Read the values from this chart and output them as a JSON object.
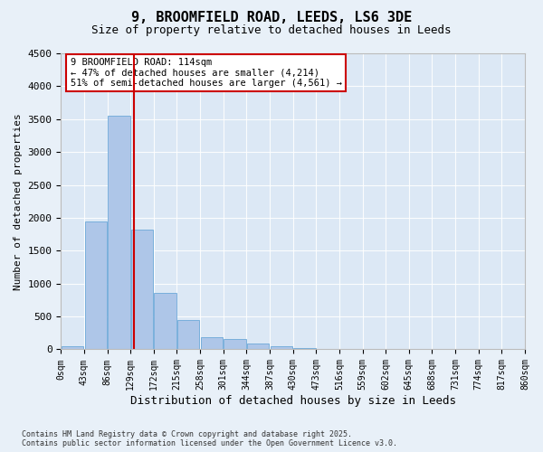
{
  "title_line1": "9, BROOMFIELD ROAD, LEEDS, LS6 3DE",
  "title_line2": "Size of property relative to detached houses in Leeds",
  "xlabel": "Distribution of detached houses by size in Leeds",
  "ylabel": "Number of detached properties",
  "annotation_title": "9 BROOMFIELD ROAD: 114sqm",
  "annotation_line2": "← 47% of detached houses are smaller (4,214)",
  "annotation_line3": "51% of semi-detached houses are larger (4,561) →",
  "footer_line1": "Contains HM Land Registry data © Crown copyright and database right 2025.",
  "footer_line2": "Contains public sector information licensed under the Open Government Licence v3.0.",
  "bin_labels": [
    "0sqm",
    "43sqm",
    "86sqm",
    "129sqm",
    "172sqm",
    "215sqm",
    "258sqm",
    "301sqm",
    "344sqm",
    "387sqm",
    "430sqm",
    "473sqm",
    "516sqm",
    "559sqm",
    "602sqm",
    "645sqm",
    "688sqm",
    "731sqm",
    "774sqm",
    "817sqm",
    "860sqm"
  ],
  "bar_values": [
    50,
    1950,
    3550,
    1820,
    860,
    440,
    185,
    155,
    85,
    50,
    25,
    10,
    5,
    3,
    2,
    1,
    1,
    0,
    0,
    0
  ],
  "bar_color": "#aec6e8",
  "bar_edge_color": "#5a9fd4",
  "vline_x": 2.65,
  "vline_color": "#cc0000",
  "ylim": [
    0,
    4500
  ],
  "yticks": [
    0,
    500,
    1000,
    1500,
    2000,
    2500,
    3000,
    3500,
    4000,
    4500
  ],
  "annotation_box_color": "#ffffff",
  "annotation_box_edge": "#cc0000",
  "bg_color": "#e8f0f8",
  "plot_bg_color": "#dce8f5"
}
